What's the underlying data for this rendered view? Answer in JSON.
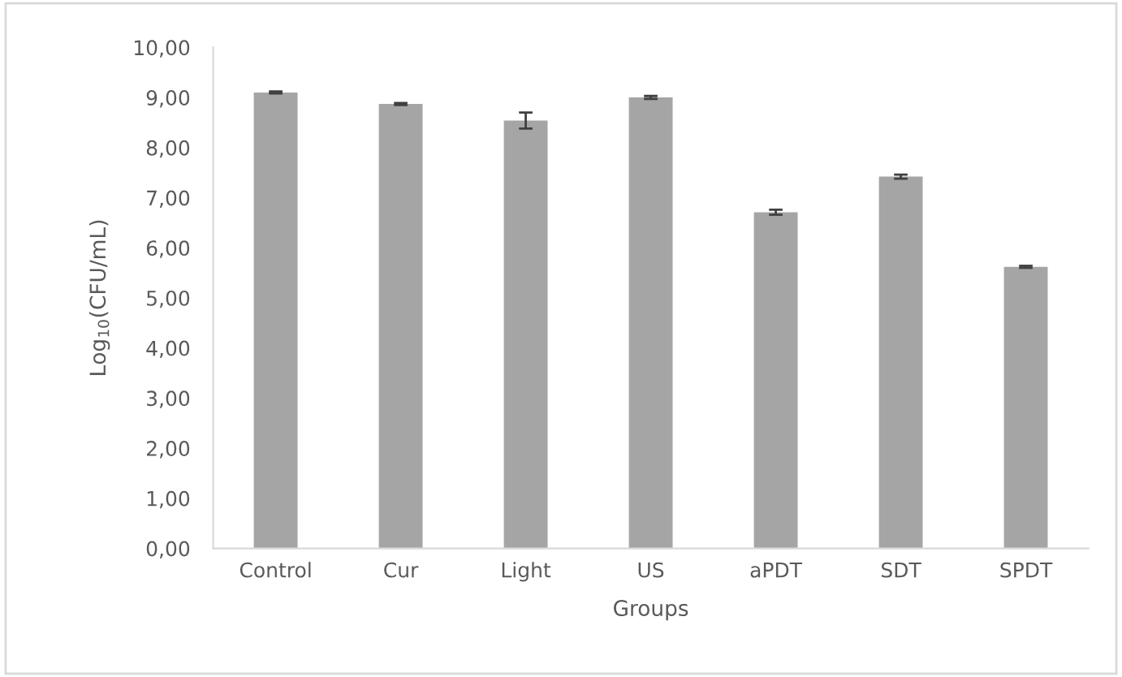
{
  "chart_data": {
    "type": "bar",
    "xlabel": "Groups",
    "ylabel": "Log$_{10}$(CFU/mL)",
    "categories": [
      "Control",
      "Cur",
      "Light",
      "US",
      "aPDT",
      "SDT",
      "SPDT"
    ],
    "values": [
      9.1,
      8.87,
      8.54,
      9.0,
      6.71,
      7.42,
      5.62
    ],
    "errors": [
      0.02,
      0.02,
      0.16,
      0.03,
      0.05,
      0.04,
      0.02
    ],
    "color": "#a5a5a5",
    "ylim": [
      0,
      10
    ],
    "yticks": [
      {
        "value": 0,
        "label": "0,00"
      },
      {
        "value": 1,
        "label": "1,00"
      },
      {
        "value": 2,
        "label": "2,00"
      },
      {
        "value": 3,
        "label": "3,00"
      },
      {
        "value": 4,
        "label": "4,00"
      },
      {
        "value": 5,
        "label": "5,00"
      },
      {
        "value": 6,
        "label": "6,00"
      },
      {
        "value": 7,
        "label": "7,00"
      },
      {
        "value": 8,
        "label": "8,00"
      },
      {
        "value": 9,
        "label": "9,00"
      },
      {
        "value": 10,
        "label": "10,00"
      }
    ],
    "grid": false,
    "legend": false
  }
}
